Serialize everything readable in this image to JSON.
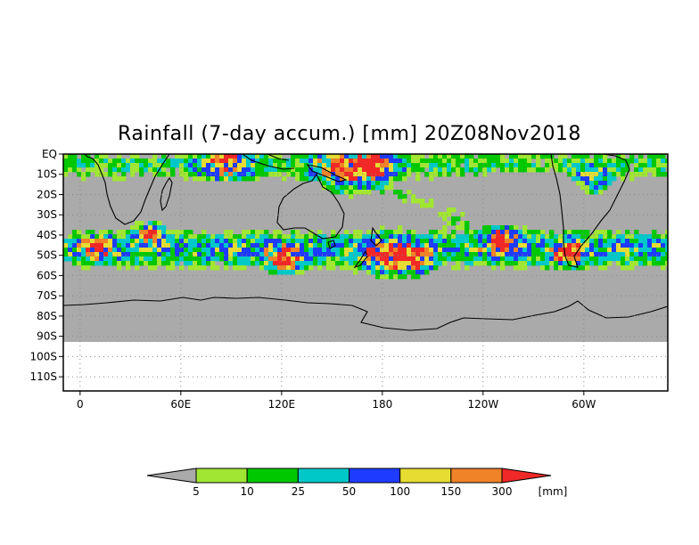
{
  "title": "Rainfall (7-day accum.) [mm] 20Z08Nov2018",
  "map": {
    "projection": "cylindrical equidistant",
    "lon_range": [
      -10,
      350
    ],
    "lat_range": [
      -117,
      0
    ],
    "data_lat_range": [
      -60,
      0
    ],
    "land_lat_limit": -90,
    "missing_color": "#aaaaaa",
    "y_ticks": [
      "EQ",
      "10S",
      "20S",
      "30S",
      "40S",
      "50S",
      "60S",
      "70S",
      "80S",
      "90S",
      "100S",
      "110S"
    ],
    "x_ticks": [
      "0",
      "60E",
      "120E",
      "180",
      "120W",
      "60W"
    ],
    "grid": "dotted"
  },
  "colorbar": {
    "unit": "[mm]",
    "labels": [
      "5",
      "10",
      "25",
      "50",
      "100",
      "150",
      "300"
    ],
    "colors": [
      "#a0e632",
      "#00c800",
      "#00c8c8",
      "#1e3cff",
      "#e6dc32",
      "#f08228",
      "#f02828"
    ],
    "under_color": "#aaaaaa"
  }
}
